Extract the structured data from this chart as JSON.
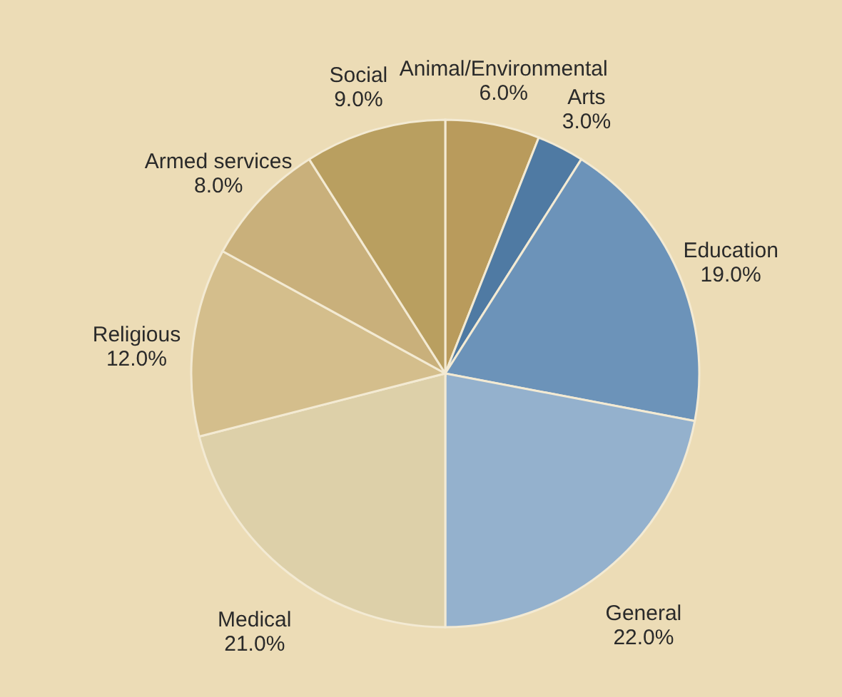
{
  "chart_data": {
    "type": "pie",
    "categories": [
      "Animal/Environmental",
      "Arts",
      "Education",
      "General",
      "Medical",
      "Religious",
      "Armed services",
      "Social"
    ],
    "values": [
      6.0,
      3.0,
      19.0,
      22.0,
      21.0,
      12.0,
      8.0,
      9.0
    ],
    "value_labels": [
      "6.0%",
      "3.0%",
      "19.0%",
      "22.0%",
      "21.0%",
      "12.0%",
      "8.0%",
      "9.0%"
    ],
    "colors": [
      "#b99b5c",
      "#4f7aa3",
      "#6c93b9",
      "#94b1cd",
      "#ddd0a9",
      "#d4be8c",
      "#c9b07b",
      "#b99f60"
    ]
  }
}
